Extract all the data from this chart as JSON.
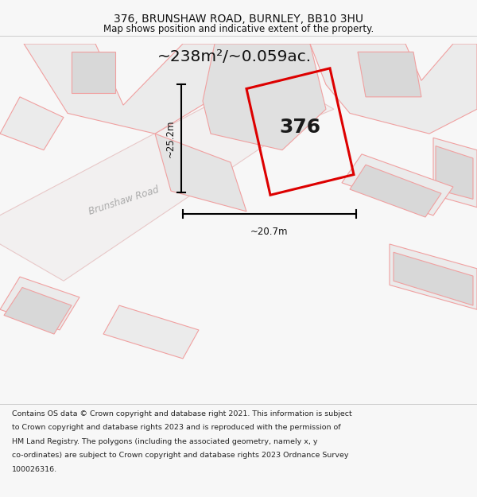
{
  "title": "376, BRUNSHAW ROAD, BURNLEY, BB10 3HU",
  "subtitle": "Map shows position and indicative extent of the property.",
  "area_label": "~238m²/~0.059ac.",
  "property_number": "376",
  "road_label": "Brunshaw Road",
  "dim_height": "~25.2m",
  "dim_width": "~20.7m",
  "footer_lines": [
    "Contains OS data © Crown copyright and database right 2021. This information is subject",
    "to Crown copyright and database rights 2023 and is reproduced with the permission of",
    "HM Land Registry. The polygons (including the associated geometry, namely x, y",
    "co-ordinates) are subject to Crown copyright and database rights 2023 Ordnance Survey",
    "100026316."
  ],
  "bg_color": "#f7f7f7",
  "map_bg": "#ffffff",
  "polygon_fill": "#e0e0e0",
  "polygon_edge_red": "#dd0000",
  "parcel_edge": "#f0a0a0",
  "parcel_fill": "#ebebeb",
  "building_fill": "#d8d8d8",
  "road_fill": "#f2f0f0",
  "road_edge": "#e8c8c8",
  "title_color": "#111111",
  "footer_color": "#222222",
  "road_label_color": "#aaaaaa",
  "dim_color": "#111111"
}
